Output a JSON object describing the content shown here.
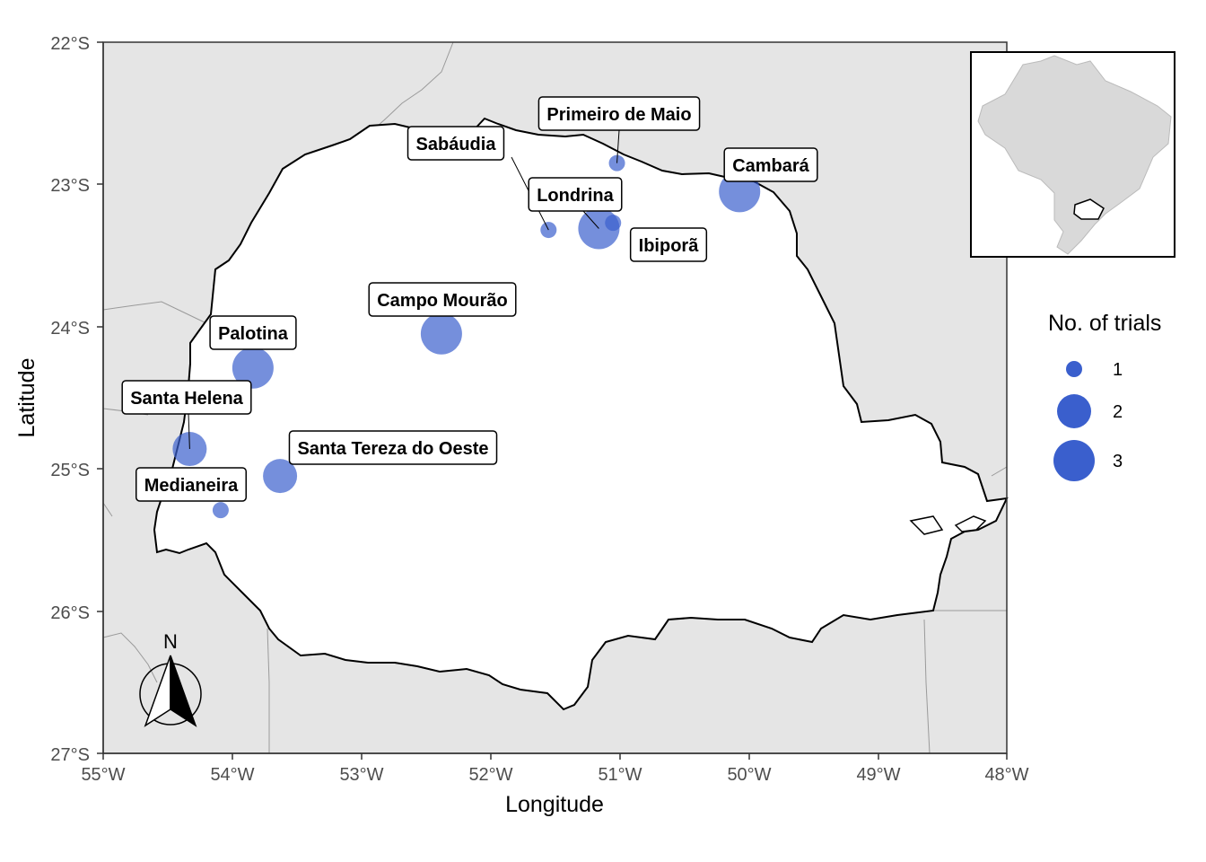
{
  "map": {
    "axes": {
      "x_title": "Longitude",
      "y_title": "Latitude",
      "x_ticks": [
        "55°W",
        "54°W",
        "53°W",
        "52°W",
        "51°W",
        "50°W",
        "49°W",
        "48°W"
      ],
      "y_ticks": [
        "22°S",
        "23°S",
        "24°S",
        "25°S",
        "26°S",
        "27°S"
      ]
    },
    "north_arrow": {
      "label": "N"
    },
    "colors": {
      "background_land": "#e5e5e5",
      "state_fill": "#ffffff",
      "point_fill": "#3a5fcd",
      "boundary": "#000000"
    }
  },
  "chart_data": {
    "type": "scatter",
    "xlabel": "Longitude",
    "ylabel": "Latitude",
    "xlim": [
      -55,
      -48
    ],
    "ylim": [
      -27,
      -22
    ],
    "size_legend": {
      "title": "No. of trials",
      "levels": [
        1,
        2,
        3
      ]
    },
    "points": [
      {
        "name": "Primeiro de Maio",
        "lon": -51.02,
        "lat": -22.85,
        "trials": 1
      },
      {
        "name": "Sabáudia",
        "lon": -51.55,
        "lat": -23.32,
        "trials": 1
      },
      {
        "name": "Cambará",
        "lon": -50.07,
        "lat": -23.05,
        "trials": 3
      },
      {
        "name": "Londrina",
        "lon": -51.16,
        "lat": -23.31,
        "trials": 3
      },
      {
        "name": "Ibiporã",
        "lon": -51.05,
        "lat": -23.27,
        "trials": 1
      },
      {
        "name": "Campo Mourão",
        "lon": -52.38,
        "lat": -24.05,
        "trials": 3
      },
      {
        "name": "Palotina",
        "lon": -53.84,
        "lat": -24.29,
        "trials": 3
      },
      {
        "name": "Santa Helena",
        "lon": -54.33,
        "lat": -24.86,
        "trials": 2
      },
      {
        "name": "Santa Tereza do Oeste",
        "lon": -53.63,
        "lat": -25.05,
        "trials": 2
      },
      {
        "name": "Medianeira",
        "lon": -54.09,
        "lat": -25.29,
        "trials": 1
      }
    ]
  }
}
